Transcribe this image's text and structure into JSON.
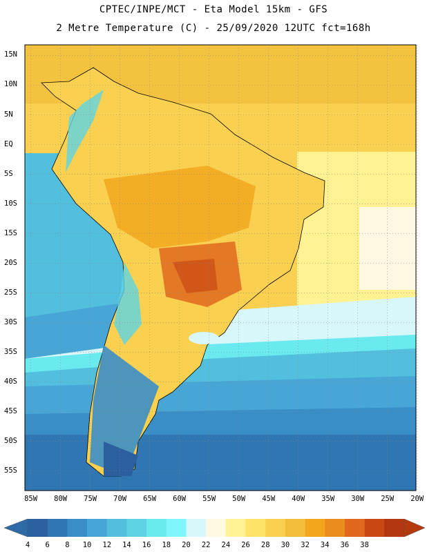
{
  "header": {
    "line1": "CPTEC/INPE/MCT -  Eta Model 15km - GFS",
    "line2": "2 Metre Temperature (C) - 25/09/2020 12UTC fct=168h"
  },
  "map": {
    "lat_labels": [
      "15N",
      "10N",
      "5N",
      "EQ",
      "5S",
      "10S",
      "15S",
      "20S",
      "25S",
      "30S",
      "35S",
      "40S",
      "45S",
      "50S",
      "55S"
    ],
    "lon_labels": [
      "85W",
      "80W",
      "75W",
      "70W",
      "65W",
      "60W",
      "55W",
      "50W",
      "45W",
      "40W",
      "35W",
      "30W",
      "25W",
      "20W"
    ],
    "lat_range": [
      -58.3,
      16.8
    ],
    "lon_range": [
      -86,
      -20.2
    ],
    "grid": true,
    "gridline_interval_deg": 5
  },
  "colorbar": {
    "levels": [
      "4",
      "6",
      "8",
      "10",
      "12",
      "14",
      "16",
      "18",
      "20",
      "22",
      "24",
      "26",
      "28",
      "30",
      "32",
      "34",
      "36",
      "38"
    ],
    "colors": [
      "#2b5f9e",
      "#2f76b3",
      "#3a8ec7",
      "#47a6d6",
      "#52bfdf",
      "#5ed3e4",
      "#6ae9ee",
      "#7ff6fa",
      "#d8f7fb",
      "#fff9e3",
      "#fff293",
      "#ffe268",
      "#f9d04f",
      "#f1bd3b",
      "#f3a51c",
      "#eb8d1d",
      "#e0681c",
      "#c94713",
      "#b23610"
    ],
    "under_color": "#2e6aa5",
    "over_color": "#b5390f"
  },
  "icons": {
    "colorbar_left": "left-triangle-icon",
    "colorbar_right": "right-triangle-icon"
  }
}
